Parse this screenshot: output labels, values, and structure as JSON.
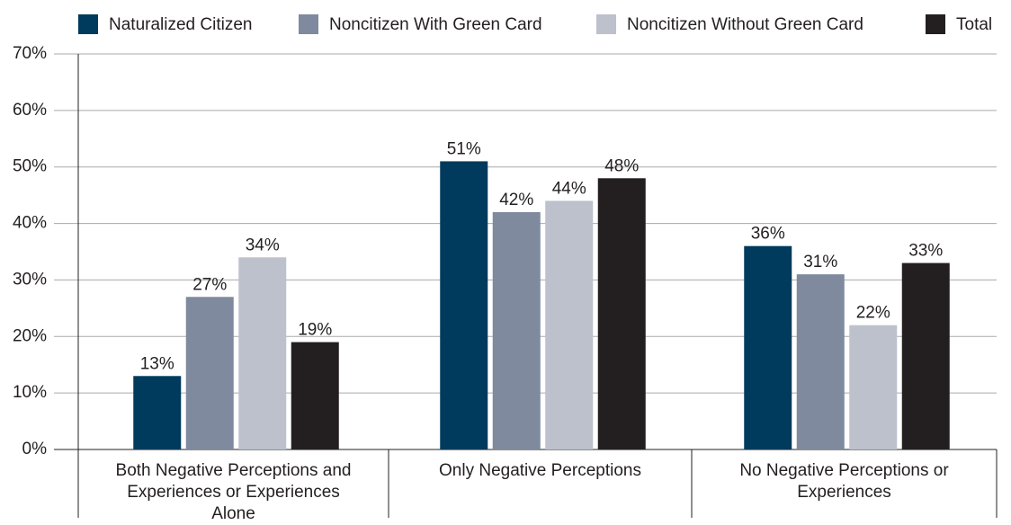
{
  "chart_data": {
    "type": "bar",
    "categories": [
      "Both Negative Perceptions and Experiences or Experiences Alone",
      "Only Negative Perceptions",
      "No Negative Perceptions or Experiences"
    ],
    "series": [
      {
        "name": "Naturalized Citizen",
        "color": "#003a5c",
        "values": [
          13,
          51,
          36
        ],
        "value_labels": [
          "13%",
          "51%",
          "36%"
        ]
      },
      {
        "name": "Noncitizen With Green Card",
        "color": "#7f8a9e",
        "values": [
          27,
          42,
          31
        ],
        "value_labels": [
          "27%",
          "42%",
          "31%"
        ]
      },
      {
        "name": "Noncitizen Without Green Card",
        "color": "#bdc1cc",
        "values": [
          34,
          44,
          22
        ],
        "value_labels": [
          "34%",
          "44%",
          "22%"
        ]
      },
      {
        "name": "Total",
        "color": "#231f20",
        "values": [
          19,
          48,
          33
        ],
        "value_labels": [
          "19%",
          "48%",
          "33%"
        ]
      }
    ],
    "ylim": [
      0,
      70
    ],
    "yticks": [
      {
        "value": 0,
        "label": "0%"
      },
      {
        "value": 10,
        "label": "10%"
      },
      {
        "value": 20,
        "label": "20%"
      },
      {
        "value": 30,
        "label": "30%"
      },
      {
        "value": 40,
        "label": "40%"
      },
      {
        "value": 50,
        "label": "50%"
      },
      {
        "value": 60,
        "label": "60%"
      },
      {
        "value": 70,
        "label": "70%"
      }
    ],
    "grid": true,
    "legend": "top"
  }
}
